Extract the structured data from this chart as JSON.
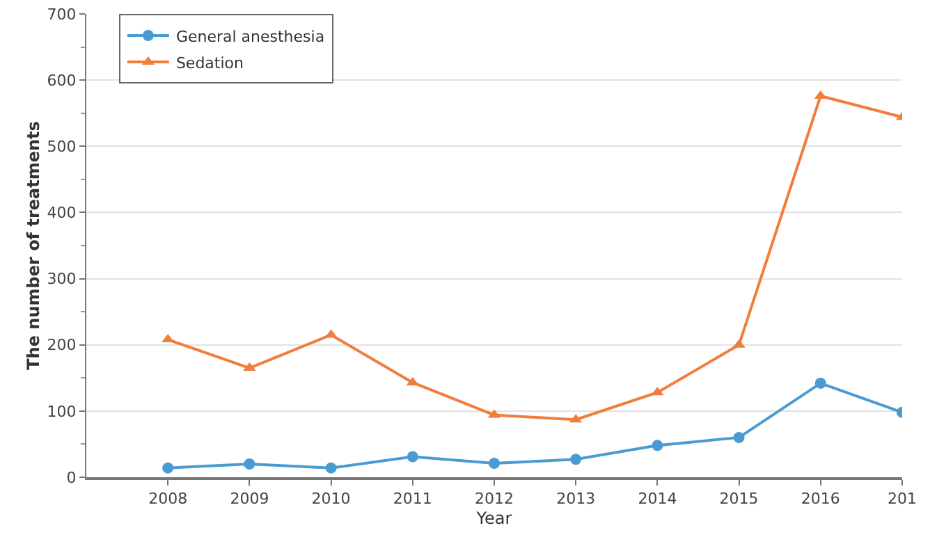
{
  "chart_data": {
    "type": "line",
    "ylabel": "The number of treatments",
    "xlabel": "Year",
    "categories": [
      "2008",
      "2009",
      "2010",
      "2011",
      "2012",
      "2013",
      "2014",
      "2015",
      "2016",
      "201"
    ],
    "series": [
      {
        "name": "General anesthesia",
        "color": "#4a9bd4",
        "marker": "circle",
        "values": [
          14,
          20,
          14,
          31,
          21,
          27,
          48,
          60,
          142,
          98
        ]
      },
      {
        "name": "Sedation",
        "color": "#f07d3c",
        "marker": "triangle",
        "values": [
          208,
          165,
          215,
          143,
          94,
          87,
          128,
          200,
          576,
          544
        ]
      }
    ],
    "ylim": [
      0,
      700
    ],
    "yticks": [
      0,
      100,
      200,
      300,
      400,
      500,
      600,
      700
    ],
    "grid": "y",
    "legend": "top left"
  }
}
